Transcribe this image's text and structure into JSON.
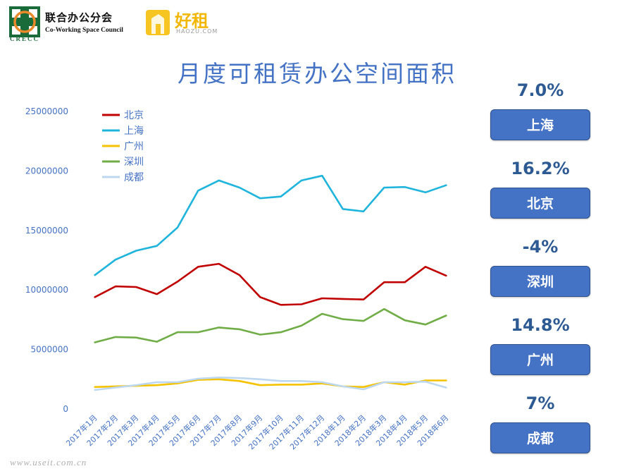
{
  "header": {
    "org_name_cn": "联合办公分会",
    "org_name_en": "Co-Working Space Council",
    "org_abbr": "CRECC",
    "partner_name": "好租",
    "partner_domain": "HAOZU.COM"
  },
  "colors": {
    "accent": "#4472c4",
    "beijing": "#c00000",
    "shanghai": "#1fb4dc",
    "guangzhou": "#f5c200",
    "shenzhen": "#70ad47",
    "chengdu": "#bdd7ee"
  },
  "chart_data": {
    "type": "line",
    "title": "月度可租赁办公空间面积",
    "xlabel": "",
    "ylabel": "",
    "ylim": [
      0,
      25000000
    ],
    "yticks": [
      0,
      5000000,
      10000000,
      15000000,
      20000000,
      25000000
    ],
    "ytick_labels": [
      "0",
      "5000000",
      "10000000",
      "15000000",
      "20000000",
      "25000000"
    ],
    "grid": false,
    "legend": "top-left",
    "categories": [
      "2017年1月",
      "2017年2月",
      "2017年3月",
      "2017年4月",
      "2017年5月",
      "2017年6月",
      "2017年7月",
      "2017年8月",
      "2017年9月",
      "2017年10月",
      "2017年11月",
      "2017年12月",
      "2018年1月",
      "2018年2月",
      "2018年3月",
      "2018年4月",
      "2018年5月",
      "2018年6月"
    ],
    "series": [
      {
        "name": "北京",
        "key": "beijing",
        "values": [
          9400000,
          10300000,
          10250000,
          9650000,
          10700000,
          11950000,
          12200000,
          11250000,
          9400000,
          8750000,
          8800000,
          9300000,
          9250000,
          9200000,
          10650000,
          10650000,
          11950000,
          11200000
        ]
      },
      {
        "name": "上海",
        "key": "shanghai",
        "values": [
          11250000,
          12550000,
          13300000,
          13700000,
          15250000,
          18350000,
          19200000,
          18600000,
          17700000,
          17850000,
          19200000,
          19600000,
          16800000,
          16600000,
          18600000,
          18650000,
          18200000,
          18800000
        ]
      },
      {
        "name": "广州",
        "key": "guangzhou",
        "values": [
          1850000,
          1900000,
          1950000,
          2000000,
          2150000,
          2450000,
          2500000,
          2350000,
          2000000,
          2050000,
          2050000,
          2150000,
          1900000,
          1850000,
          2250000,
          2050000,
          2400000,
          2400000
        ]
      },
      {
        "name": "深圳",
        "key": "shenzhen",
        "values": [
          5600000,
          6050000,
          6000000,
          5650000,
          6450000,
          6450000,
          6850000,
          6700000,
          6250000,
          6450000,
          7000000,
          8000000,
          7550000,
          7400000,
          8400000,
          7450000,
          7100000,
          7850000
        ]
      },
      {
        "name": "成都",
        "key": "chengdu",
        "values": [
          1600000,
          1800000,
          2000000,
          2250000,
          2250000,
          2550000,
          2650000,
          2600000,
          2500000,
          2350000,
          2350000,
          2250000,
          1900000,
          1650000,
          2250000,
          2250000,
          2300000,
          1800000
        ]
      }
    ]
  },
  "growth_panel": [
    {
      "pct": "7.0%",
      "city": "上海"
    },
    {
      "pct": "16.2%",
      "city": "北京"
    },
    {
      "pct": "-4%",
      "city": "深圳"
    },
    {
      "pct": "14.8%",
      "city": "广州"
    },
    {
      "pct": "7%",
      "city": "成都"
    }
  ],
  "watermark": "www.useit.com.cn"
}
